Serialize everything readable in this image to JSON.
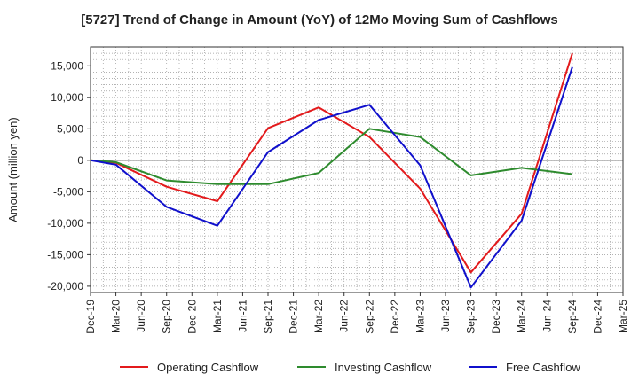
{
  "chart_data": {
    "type": "line",
    "title": "[5727]  Trend of Change in Amount (YoY) of 12Mo Moving Sum of Cashflows",
    "xlabel": "",
    "ylabel": "Amount (million yen)",
    "ylim": [
      -21000,
      18000
    ],
    "yticks": [
      15000,
      10000,
      5000,
      0,
      -5000,
      -10000,
      -15000,
      -20000
    ],
    "ytick_labels": [
      "15,000",
      "10,000",
      "5,000",
      "0",
      "-5,000",
      "-10,000",
      "-15,000",
      "-20,000"
    ],
    "categories": [
      "Dec-19",
      "Mar-20",
      "Jun-20",
      "Sep-20",
      "Dec-20",
      "Mar-21",
      "Jun-21",
      "Sep-21",
      "Dec-21",
      "Mar-22",
      "Jun-22",
      "Sep-22",
      "Dec-22",
      "Mar-23",
      "Jun-23",
      "Sep-23",
      "Dec-23",
      "Mar-24",
      "Jun-24",
      "Sep-24",
      "Dec-24",
      "Mar-25"
    ],
    "grid": true,
    "legend_position": "bottom",
    "series": [
      {
        "name": "Operating Cashflow",
        "color": "#e31a1c",
        "values": [
          0,
          -400,
          null,
          -4200,
          null,
          -6500,
          null,
          5100,
          null,
          8400,
          null,
          3700,
          null,
          -4500,
          null,
          -17800,
          null,
          -8500,
          null,
          17000,
          null,
          null
        ]
      },
      {
        "name": "Investing Cashflow",
        "color": "#2e8b2e",
        "values": [
          0,
          -300,
          null,
          -3200,
          null,
          -3800,
          null,
          -3800,
          null,
          -2000,
          null,
          5000,
          null,
          3700,
          null,
          -2400,
          null,
          -1200,
          null,
          -2200,
          null,
          null
        ]
      },
      {
        "name": "Free Cashflow",
        "color": "#1010cc",
        "values": [
          0,
          -700,
          null,
          -7400,
          null,
          -10400,
          null,
          1300,
          null,
          6400,
          null,
          8800,
          null,
          -800,
          null,
          -20200,
          null,
          -9600,
          null,
          14800,
          null,
          null
        ]
      }
    ]
  }
}
